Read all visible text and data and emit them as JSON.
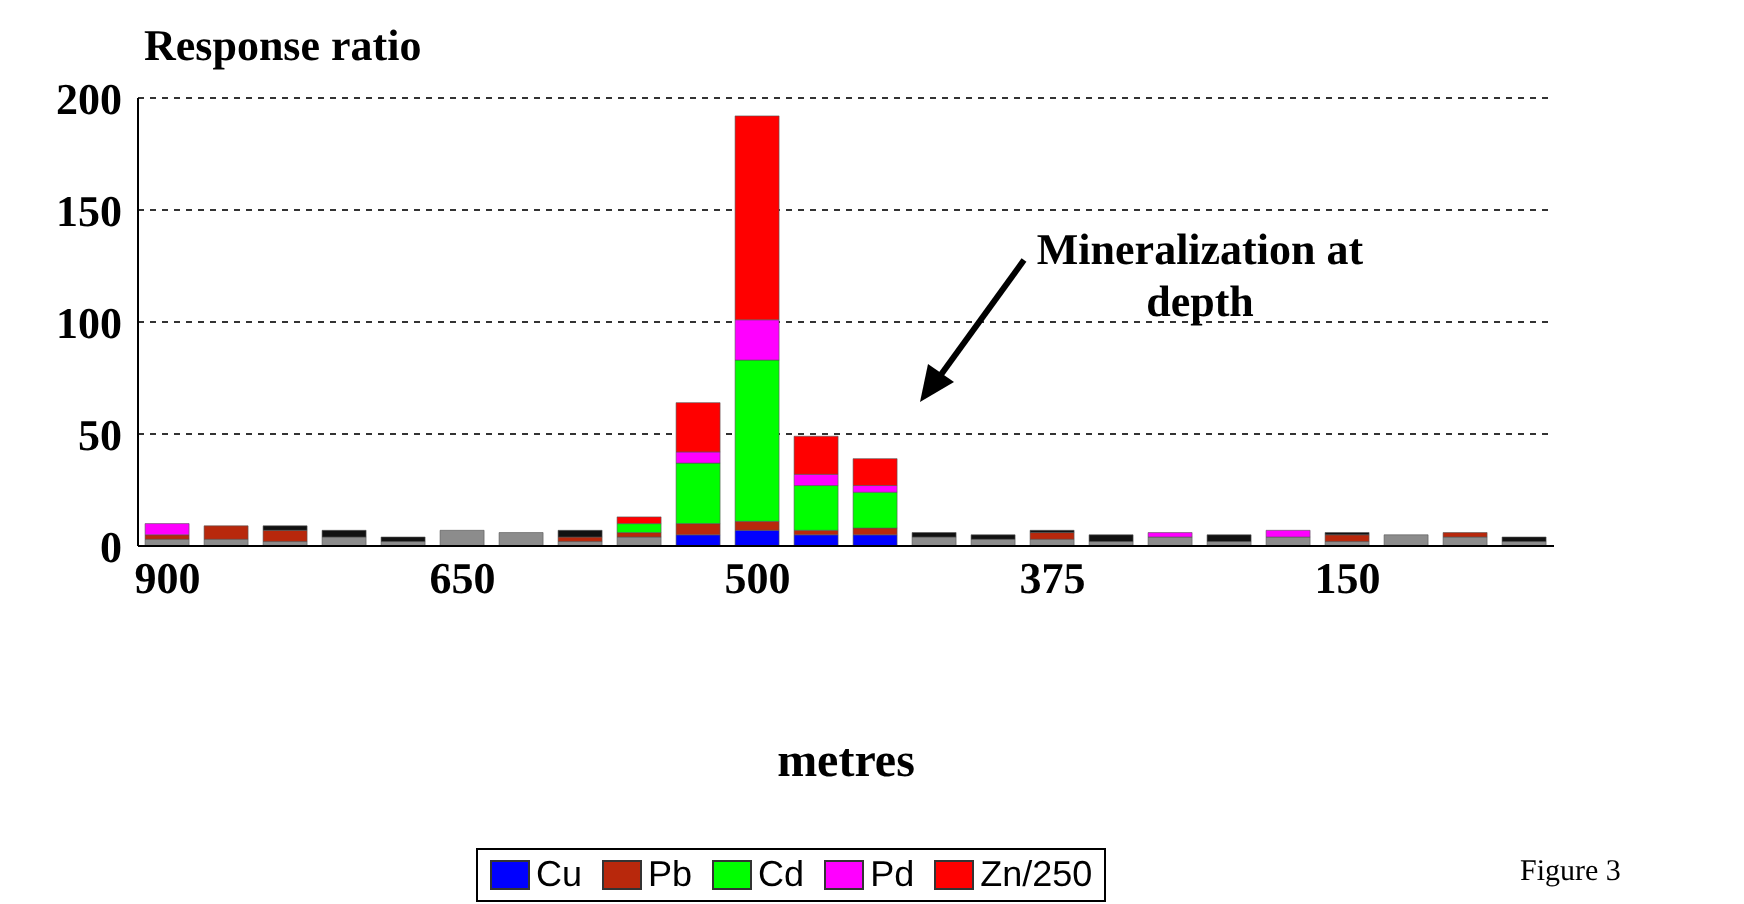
{
  "chart_data": {
    "type": "bar",
    "stacked": true,
    "ylabel": "Response ratio",
    "xlabel": "metres",
    "annotations": [
      "Mineralization at depth",
      "Figure 3"
    ],
    "categories": [
      "900",
      null,
      null,
      null,
      null,
      "650",
      null,
      null,
      null,
      null,
      "500",
      null,
      null,
      null,
      null,
      "375",
      null,
      null,
      null,
      null,
      "150",
      null,
      null,
      null
    ],
    "series": [
      {
        "name": "Cu",
        "color": "#0000ff",
        "values": [
          null,
          null,
          null,
          null,
          null,
          null,
          null,
          null,
          null,
          5,
          7,
          5,
          5,
          null,
          null,
          null,
          null,
          null,
          null,
          null,
          null,
          null,
          null,
          null
        ]
      },
      {
        "color": "#8c8c8c",
        "values": [
          3,
          3,
          2,
          4,
          2,
          7,
          6,
          2,
          4,
          null,
          null,
          null,
          null,
          4,
          3,
          3,
          2,
          4,
          2,
          4,
          2,
          5,
          4,
          2
        ]
      },
      {
        "name": "Pb",
        "color": "#b8280c",
        "values": [
          2,
          6,
          5,
          null,
          null,
          null,
          null,
          2,
          2,
          5,
          4,
          2,
          3,
          null,
          null,
          3,
          null,
          null,
          null,
          null,
          3,
          null,
          2,
          null
        ]
      },
      {
        "name": "Cd",
        "color": "#00ff00",
        "values": [
          null,
          null,
          null,
          null,
          null,
          null,
          null,
          null,
          4,
          27,
          72,
          20,
          16,
          null,
          null,
          null,
          null,
          null,
          null,
          null,
          null,
          null,
          null,
          null
        ]
      },
      {
        "name": "Pd",
        "color": "#ff00ff",
        "values": [
          5,
          null,
          null,
          null,
          null,
          null,
          null,
          null,
          null,
          5,
          18,
          5,
          3,
          null,
          null,
          null,
          null,
          2,
          null,
          3,
          null,
          null,
          null,
          null
        ]
      },
      {
        "name": "Zn/250",
        "color": "#ff0000",
        "values": [
          null,
          null,
          null,
          null,
          null,
          null,
          null,
          null,
          3,
          22,
          91,
          17,
          12,
          null,
          null,
          null,
          null,
          null,
          null,
          null,
          null,
          null,
          null,
          null
        ]
      },
      {
        "color": "#111111",
        "values": [
          null,
          null,
          2,
          3,
          2,
          null,
          null,
          3,
          null,
          null,
          null,
          null,
          null,
          2,
          2,
          1,
          3,
          null,
          3,
          null,
          1,
          null,
          null,
          2
        ]
      }
    ],
    "ylim": [
      0,
      200
    ],
    "yticks": [
      0,
      50,
      100,
      150,
      200
    ],
    "grid": "y",
    "legend": "bottom"
  }
}
